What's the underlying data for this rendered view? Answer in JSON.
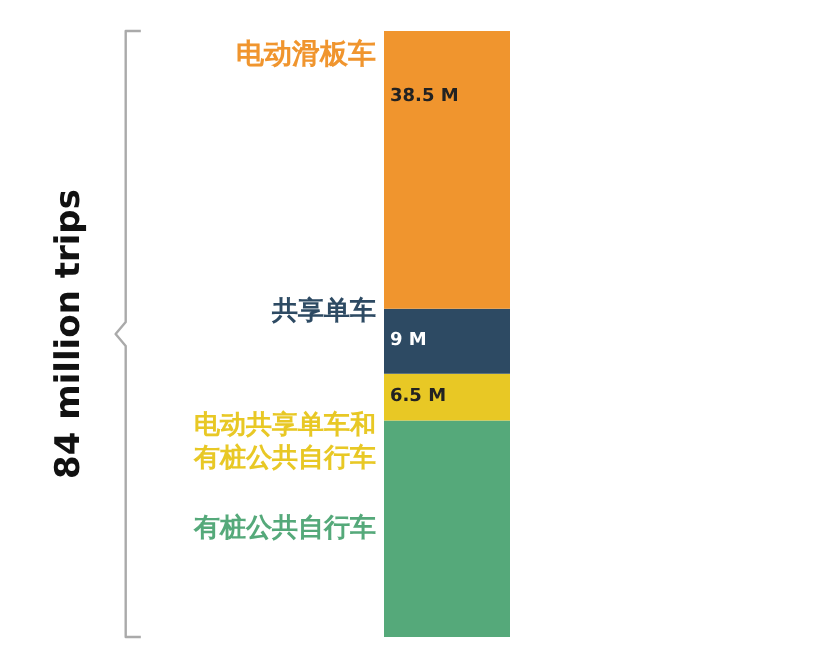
{
  "chart_data": {
    "type": "bar",
    "stacked": true,
    "categories": [
      null
    ],
    "ylim": [
      0,
      84
    ],
    "bands": [
      {
        "axis": "y",
        "from": 0,
        "to": 84,
        "label": "84 million trips"
      }
    ],
    "series": [
      {
        "name": "有桩公共自行车",
        "color": "#55a97a",
        "values": [
          30
        ],
        "value_labels": [
          null
        ]
      },
      {
        "name": "电动共享单车和有桩公共自行车",
        "color": "#e8c825",
        "values": [
          6.5
        ],
        "value_labels": [
          "6.5 M"
        ]
      },
      {
        "name": "共享单车",
        "color": "#2d4a63",
        "values": [
          9
        ],
        "value_labels": [
          "9 M"
        ]
      },
      {
        "name": "电动滑板车",
        "color": "#f0952e",
        "values": [
          38.5
        ],
        "value_labels": [
          "38.5 M"
        ]
      }
    ]
  }
}
